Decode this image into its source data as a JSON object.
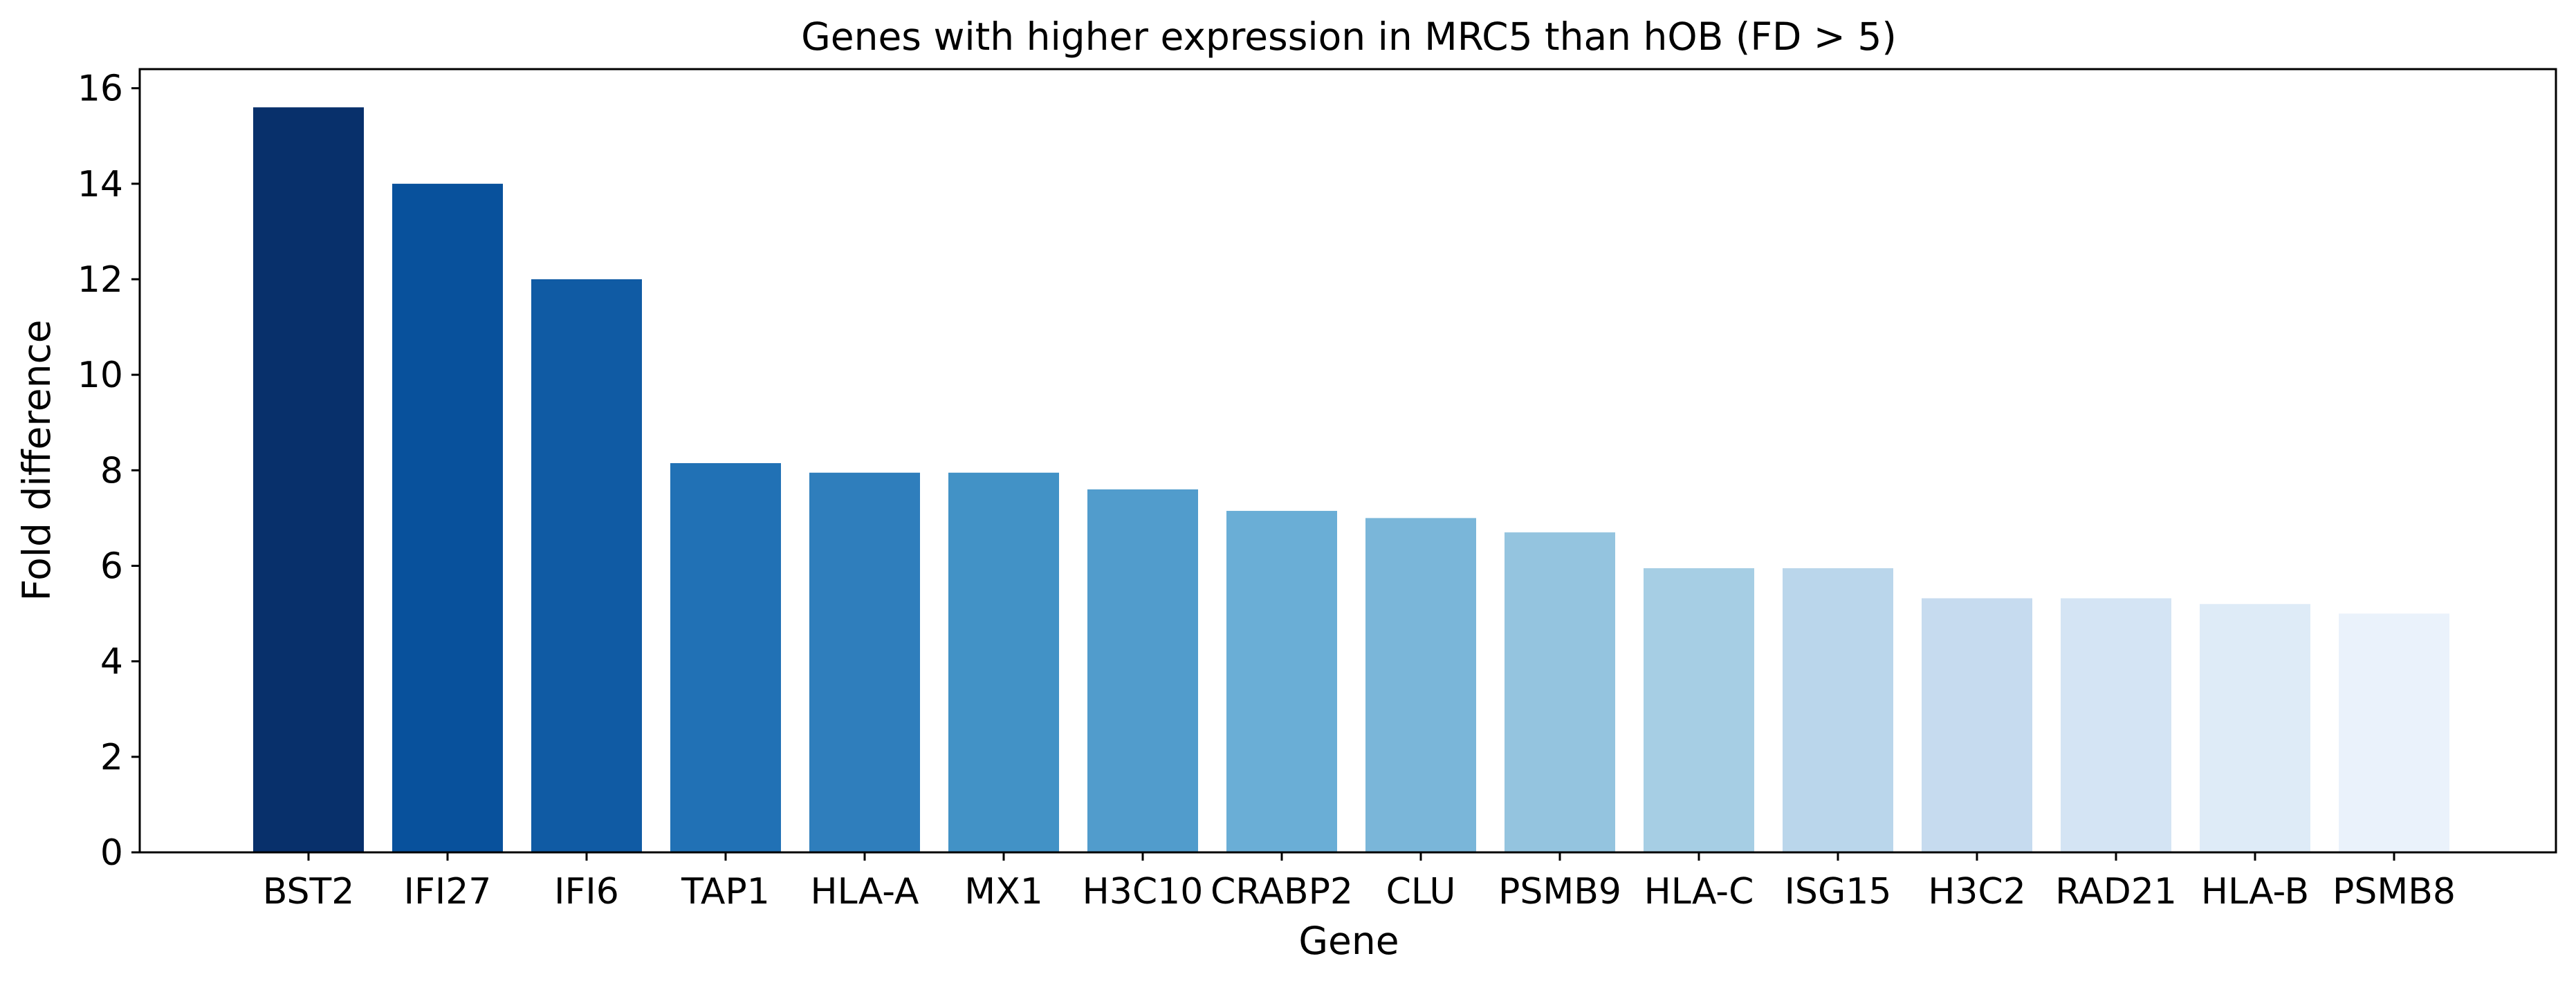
{
  "chart_data": {
    "type": "bar",
    "title": "Genes with higher expression in MRC5 than hOB (FD > 5)",
    "xlabel": "Gene",
    "ylabel": "Fold difference",
    "categories": [
      "BST2",
      "IFI27",
      "IFI6",
      "TAP1",
      "HLA-A",
      "MX1",
      "H3C10",
      "CRABP2",
      "CLU",
      "PSMB9",
      "HLA-C",
      "ISG15",
      "H3C2",
      "RAD21",
      "HLA-B",
      "PSMB8"
    ],
    "values": [
      15.6,
      14.0,
      12.0,
      8.15,
      7.95,
      7.95,
      7.6,
      7.15,
      7.0,
      6.7,
      5.95,
      5.95,
      5.32,
      5.32,
      5.2,
      5.0
    ],
    "colors": [
      "#08306b",
      "#08519c",
      "#105ba4",
      "#2171b5",
      "#2f7ebc",
      "#4292c6",
      "#519ccc",
      "#6aaed6",
      "#7ab6d9",
      "#94c4df",
      "#a6cee4",
      "#bad6eb",
      "#c6dbef",
      "#d4e4f4",
      "#deebf7",
      "#eaf2fb"
    ],
    "ylim": [
      0,
      16.4
    ],
    "yticks": [
      0,
      2,
      4,
      6,
      8,
      10,
      12,
      14,
      16
    ],
    "grid": false,
    "legend": "none"
  }
}
